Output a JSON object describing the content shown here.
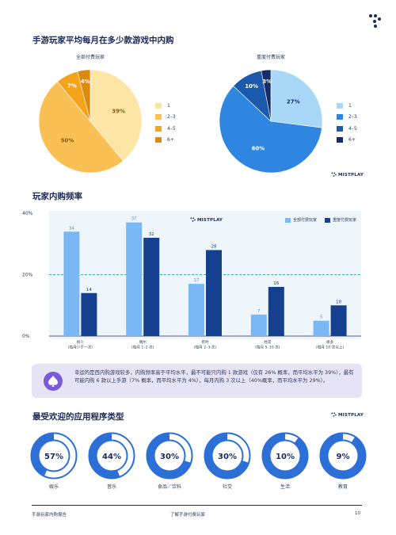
{
  "header": {
    "logo_icon": "mistplay-dots-icon"
  },
  "section1": {
    "title": "手游玩家平均每月在多少款游戏中内购",
    "brand": "MISTPLAY"
  },
  "pie_left": {
    "label": "全部付费玩家",
    "legend": [
      "1",
      "2–3",
      "4–5",
      "6+"
    ]
  },
  "pie_right": {
    "label": "重度付费玩家",
    "legend": [
      "1",
      "2–3",
      "4–5",
      "6+"
    ]
  },
  "section2": {
    "title": "玩家内购频率",
    "brand": "MISTPLAY",
    "legend_all": "全部付费玩家",
    "legend_heavy": "重度付费玩家"
  },
  "callout": {
    "icon": "spade-icon",
    "text": "幸运的是西内购游戏较多，内购频率高于平均水平，最不可能只内购 1 款游戏（仅有 26% 概率，而平均水平为 39%），最有可能内购 6 款以上手游（7% 概率，而平均水平为 4%），每月内购 3 次以上（40%概率，而平均水平为 29%）。"
  },
  "section3": {
    "title": "最受欢迎的应用程序类型",
    "brand": "MISTPLAY"
  },
  "donuts": [
    {
      "pct": "57%",
      "label": "娱乐",
      "value": 57
    },
    {
      "pct": "44%",
      "label": "音乐",
      "value": 44
    },
    {
      "pct": "30%",
      "label": "食品／饮料",
      "value": 30
    },
    {
      "pct": "30%",
      "label": "社交",
      "value": 30
    },
    {
      "pct": "10%",
      "label": "生活",
      "value": 10
    },
    {
      "pct": "9%",
      "label": "教育",
      "value": 9
    }
  ],
  "footer": {
    "left": "手游玩家内购报告",
    "center": "了解手游付费玩家",
    "page": "10"
  },
  "colors": {
    "navy": "#1b2a5c",
    "orange_light": "#fde5a6",
    "orange_mid": "#f9c055",
    "orange_dark": "#f5a31a",
    "orange_deepest": "#dc8a0c",
    "blue_light": "#a9d7f7",
    "blue_mid": "#2f86e0",
    "blue_dark": "#1a5aac",
    "blue_deepest": "#152c6b",
    "bar_light": "#7ab8f5",
    "bar_dark": "#153f8f",
    "dashed": "#3fb5a3",
    "donut_fill": "#2c6fd6"
  },
  "chart_data": [
    {
      "type": "pie",
      "title": "全部付费玩家",
      "categories": [
        "1",
        "2–3",
        "4–5",
        "6+"
      ],
      "values": [
        39,
        50,
        7,
        4
      ],
      "labels": [
        "39%",
        "50%",
        "7%",
        "4%"
      ]
    },
    {
      "type": "pie",
      "title": "重度付费玩家",
      "categories": [
        "1",
        "2–3",
        "4–5",
        "6+"
      ],
      "values": [
        27,
        60,
        10,
        3
      ],
      "labels": [
        "27%",
        "60%",
        "10%",
        "3%"
      ]
    },
    {
      "type": "bar",
      "categories": [
        [
          "很少",
          "(每月少于一次)"
        ],
        [
          "偶尔",
          "(每月 1–2 次)"
        ],
        [
          "有时",
          "(每月 2–3 次)"
        ],
        [
          "经常",
          "(每月 5–10 次)"
        ],
        [
          "很多",
          "(每月 10 次以上)"
        ]
      ],
      "series": [
        {
          "name": "全部付费玩家",
          "values": [
            34,
            37,
            17,
            7,
            5
          ]
        },
        {
          "name": "重度付费玩家",
          "values": [
            14,
            32,
            28,
            16,
            10
          ]
        }
      ],
      "ylim": [
        0,
        40
      ],
      "yticks": [
        "0%",
        "20%",
        "40%"
      ],
      "reference_line": 20,
      "grid": false,
      "legend": "top-right"
    }
  ]
}
